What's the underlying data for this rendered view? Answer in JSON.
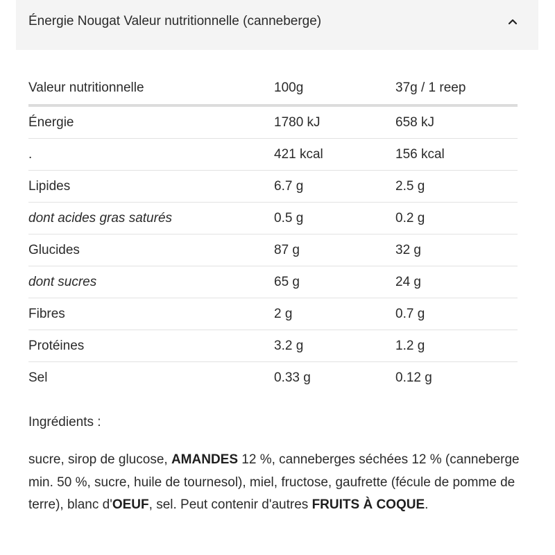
{
  "accordion": {
    "title": "Énergie Nougat Valeur nutritionnelle (canneberge)",
    "icon": "chevron-up-icon",
    "background": "#f4f4f4"
  },
  "table": {
    "headers": [
      "Valeur nutritionnelle",
      "100g",
      "37g / 1 reep"
    ],
    "rows": [
      {
        "label": "Énergie",
        "per100": "1780 kJ",
        "perServing": "658 kJ",
        "italic": false
      },
      {
        "label": ".",
        "per100": "421 kcal",
        "perServing": "156 kcal",
        "italic": false
      },
      {
        "label": "Lipides",
        "per100": "6.7 g",
        "perServing": "2.5 g",
        "italic": false
      },
      {
        "label": "dont acides gras saturés",
        "per100": "0.5 g",
        "perServing": "0.2 g",
        "italic": true
      },
      {
        "label": "Glucides",
        "per100": "87 g",
        "perServing": "32 g",
        "italic": false
      },
      {
        "label": "dont sucres",
        "per100": "65 g",
        "perServing": "24 g",
        "italic": true
      },
      {
        "label": "Fibres",
        "per100": "2 g",
        "perServing": "0.7 g",
        "italic": false
      },
      {
        "label": "Protéines",
        "per100": "3.2 g",
        "perServing": "1.2 g",
        "italic": false
      },
      {
        "label": "Sel",
        "per100": "0.33 g",
        "perServing": "0.12 g",
        "italic": false
      }
    ]
  },
  "ingredients": {
    "title": "Ingrédients :",
    "segments": [
      {
        "text": "sucre, sirop de glucose, ",
        "bold": false
      },
      {
        "text": "AMANDES",
        "bold": true
      },
      {
        "text": " 12 %, canneberges séchées 12 % (canneberge min. 50 %, sucre, huile de tournesol), miel, fructose, gaufrette (fécule de pomme de terre), blanc d'",
        "bold": false
      },
      {
        "text": "OEUF",
        "bold": true
      },
      {
        "text": ", sel. Peut contenir d'autres ",
        "bold": false
      },
      {
        "text": "FRUITS À COQUE",
        "bold": true
      },
      {
        "text": ".",
        "bold": false
      }
    ]
  }
}
